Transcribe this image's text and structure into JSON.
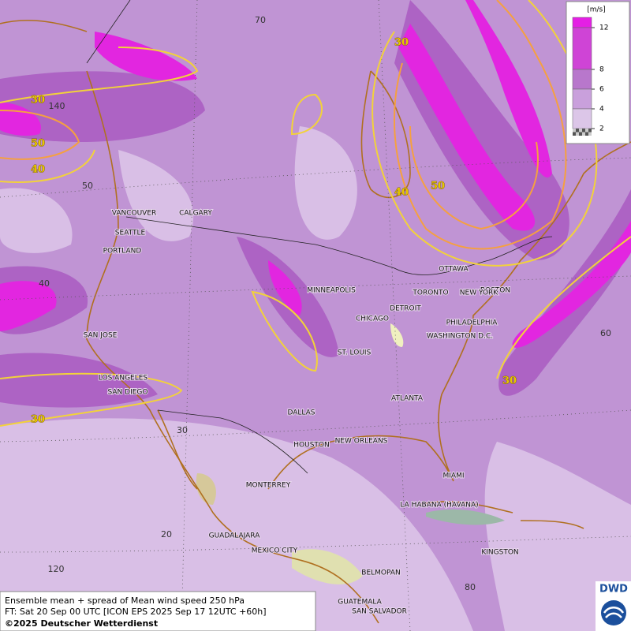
{
  "map": {
    "cities": [
      "VANCOUVER",
      "CALGARY",
      "SEATTLE",
      "PORTLAND",
      "SAN JOSE",
      "LOS ANGELES",
      "SAN DIEGO",
      "DALLAS",
      "HOUSTON",
      "NEW ORLEANS",
      "MONTERREY",
      "GUADALAJARA",
      "MEXICO CITY",
      "BELMOPAN",
      "GUATEMALA",
      "SAN SALVADOR",
      "MINNEAPOLIS",
      "CHICAGO",
      "ST. LOUIS",
      "DETROIT",
      "TORONTO",
      "OTTAWA",
      "BOSTON",
      "NEW YORK",
      "PHILADELPHIA",
      "WASHINGTON D.C.",
      "ATLANTA",
      "MIAMI",
      "LA HABANA (HAVANA)",
      "KINGSTON"
    ],
    "grid_labels": [
      "70",
      "140",
      "50",
      "40",
      "30",
      "20",
      "120",
      "80",
      "60"
    ],
    "contour_labels": [
      "30",
      "30",
      "50",
      "40",
      "40",
      "50",
      "30",
      "30"
    ]
  },
  "legend": {
    "unit": "[m/s]",
    "levels": [
      {
        "value": 12,
        "color": "#e41fe4"
      },
      {
        "value": 8,
        "color": "#cf44d6"
      },
      {
        "value": 6,
        "color": "#b877cc"
      },
      {
        "value": 4,
        "color": "#c9a0dc"
      },
      {
        "value": 2,
        "color": "#dcc6e8"
      }
    ]
  },
  "footer": {
    "line1": "Ensemble mean + spread of Mean wind speed 250 hPa",
    "line2": "FT: Sat 20 Sep 00 UTC [ICON EPS 2025 Sep 17 12UTC +60h]",
    "line3": "©2025 Deutscher Wetterdienst",
    "logo": "DWD"
  }
}
